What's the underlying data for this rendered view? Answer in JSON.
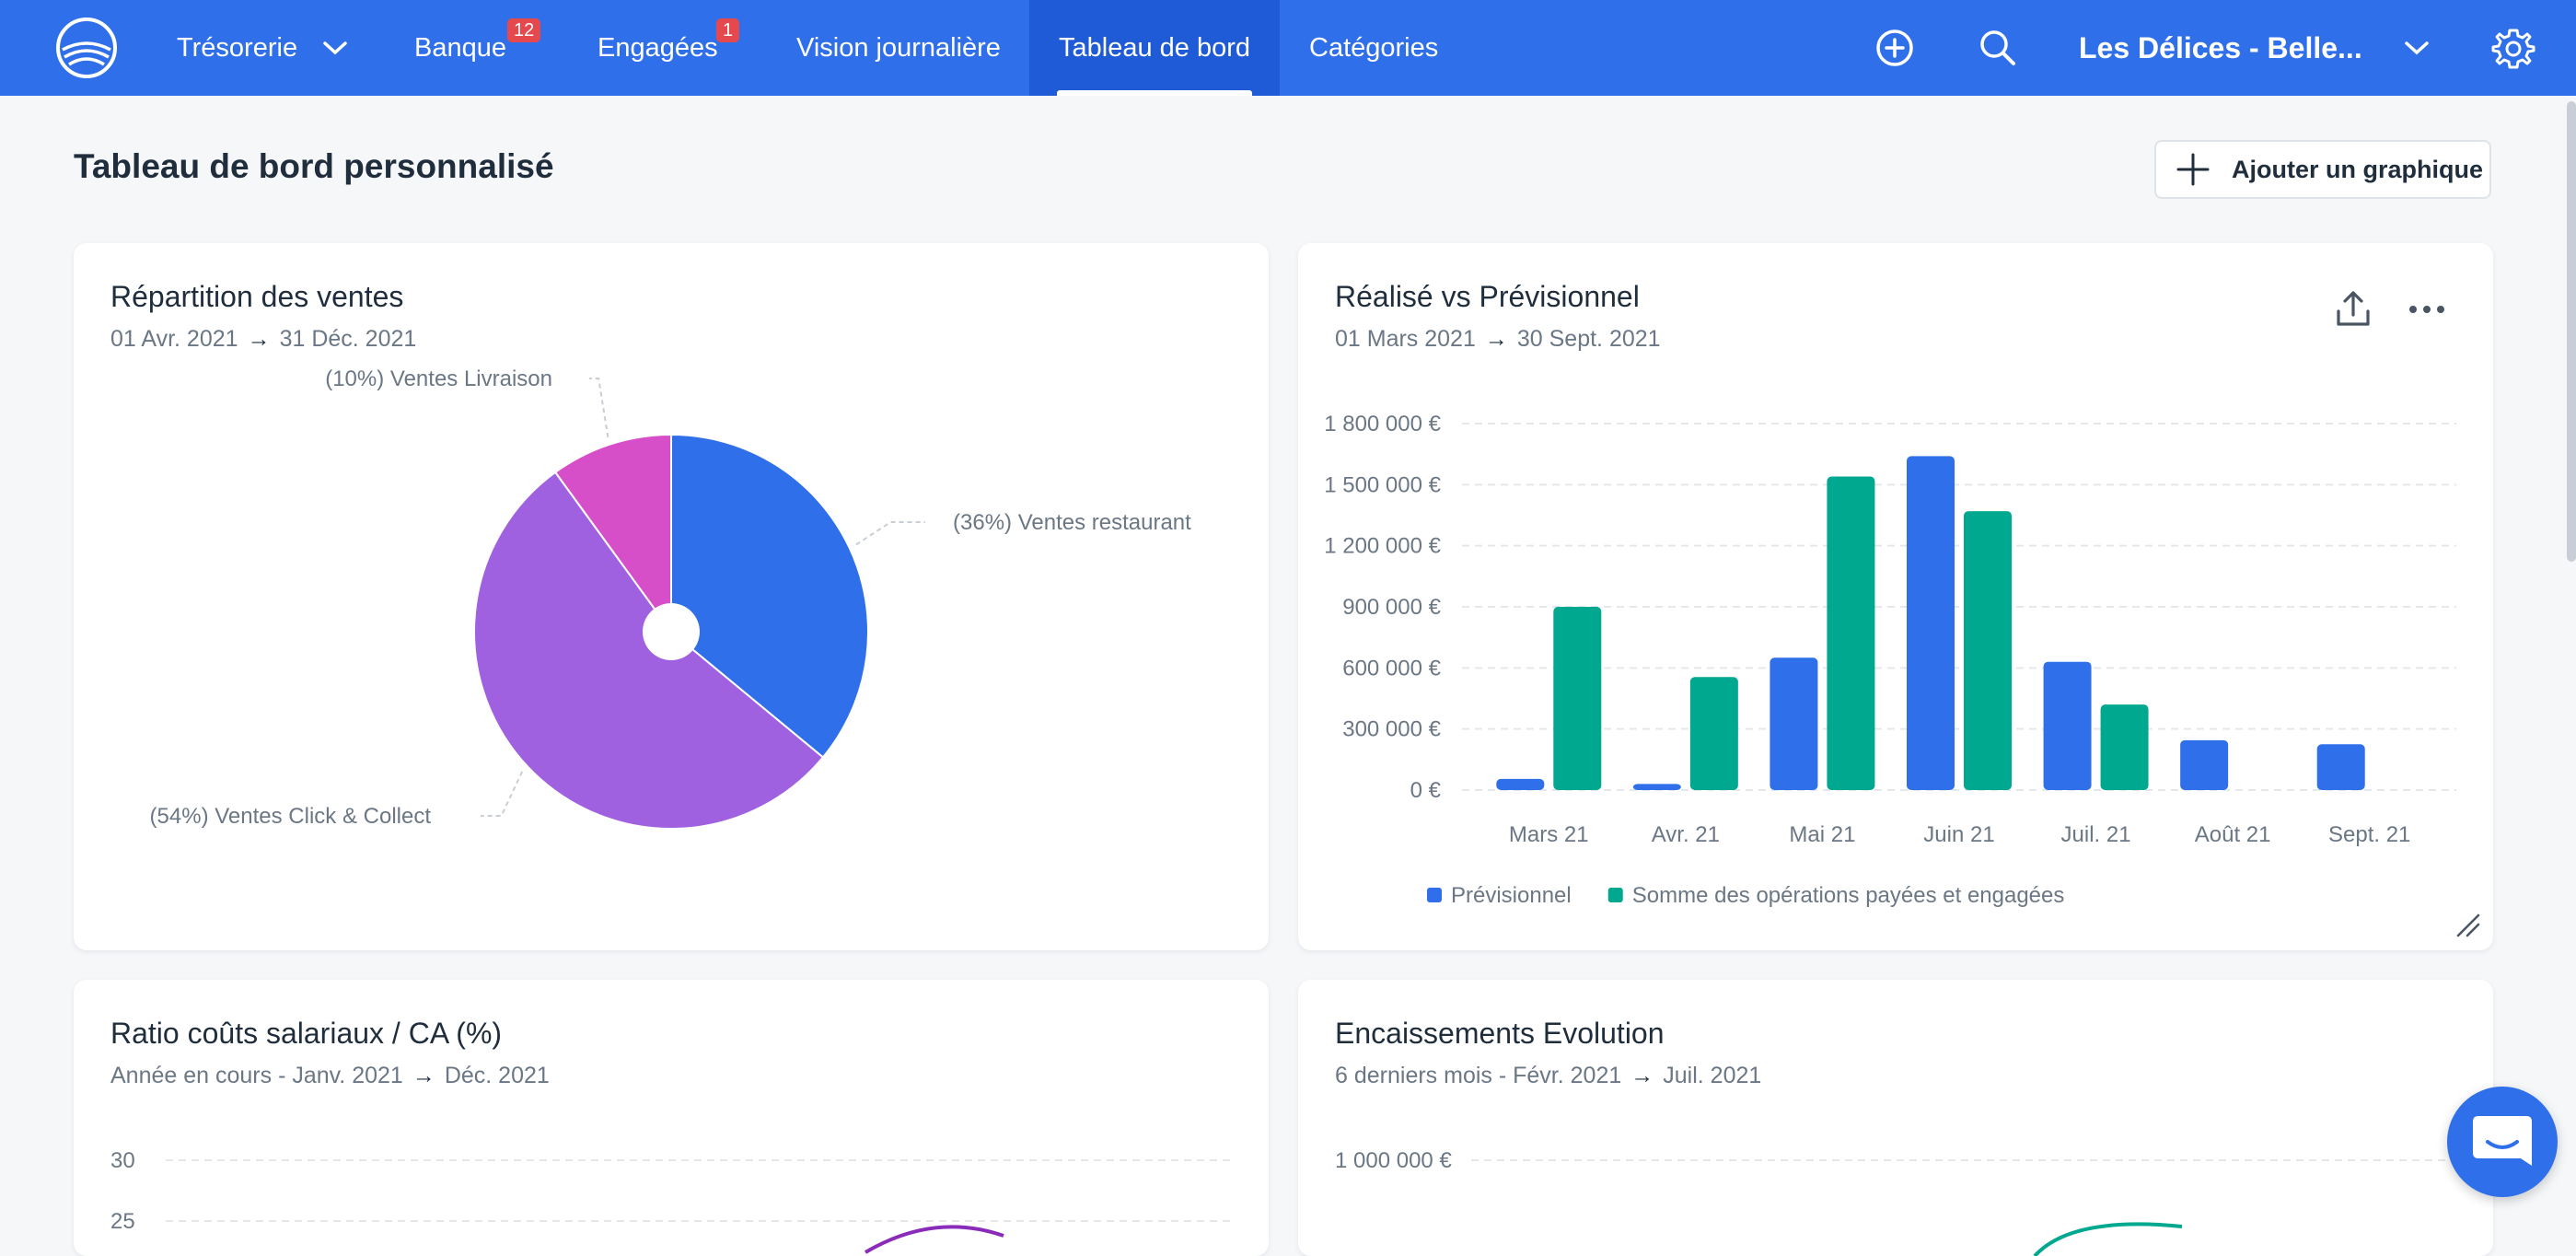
{
  "nav": {
    "items": [
      {
        "label": "Trésorerie",
        "has_dropdown": true
      },
      {
        "label": "Banque",
        "badge": "12"
      },
      {
        "label": "Engagées",
        "badge": "1"
      },
      {
        "label": "Vision journalière"
      },
      {
        "label": "Tableau de bord",
        "active": true
      },
      {
        "label": "Catégories"
      }
    ],
    "company": "Les Délices - Belle...",
    "icons": [
      "logo-icon",
      "add-circle-icon",
      "search-icon",
      "chevron-down-icon",
      "gear-icon"
    ]
  },
  "page": {
    "title": "Tableau de bord personnalisé",
    "add_button": "Ajouter un graphique"
  },
  "cards": [
    {
      "title": "Répartition des ventes",
      "from": "01 Avr. 2021",
      "to": "31 Déc. 2021",
      "chart_data": {
        "type": "pie",
        "slices": [
          {
            "label": "(36%) Ventes restaurant",
            "value": 36,
            "color": "#2f6fea"
          },
          {
            "label": "(54%) Ventes Click & Collect",
            "value": 54,
            "color": "#a061e0"
          },
          {
            "label": "(10%) Ventes Livraison",
            "value": 10,
            "color": "#d64fc9"
          }
        ]
      }
    },
    {
      "title": "Réalisé vs Prévisionnel",
      "from": "01 Mars 2021",
      "to": "30 Sept. 2021",
      "chart_data": {
        "type": "bar",
        "categories": [
          "Mars 21",
          "Avr. 21",
          "Mai 21",
          "Juin 21",
          "Juil. 21",
          "Août 21",
          "Sept. 21"
        ],
        "series": [
          {
            "name": "Prévisionnel",
            "color": "#2f6fea",
            "values": [
              55000,
              30000,
              650000,
              1640000,
              630000,
              245000,
              225000
            ]
          },
          {
            "name": "Somme des opérations payées et engagées",
            "color": "#00a88f",
            "values": [
              900000,
              555000,
              1540000,
              1370000,
              420000,
              0,
              0
            ]
          }
        ],
        "y_ticks": [
          "0 €",
          "300 000 €",
          "600 000 €",
          "900 000 €",
          "1 200 000 €",
          "1 500 000 €",
          "1 800 000 €"
        ],
        "ylim": [
          0,
          1800000
        ],
        "grid": true,
        "legend": "bottom"
      }
    },
    {
      "title": "Ratio coûts salariaux / CA (%)",
      "period": "Année en cours - ",
      "from": "Janv. 2021",
      "to": "Déc. 2021",
      "y_ticks": [
        "30",
        "25"
      ]
    },
    {
      "title": "Encaissements Evolution",
      "period": "6 derniers mois - ",
      "from": "Févr. 2021",
      "to": "Juil. 2021",
      "y_ticks": [
        "1 000 000 €"
      ]
    }
  ]
}
